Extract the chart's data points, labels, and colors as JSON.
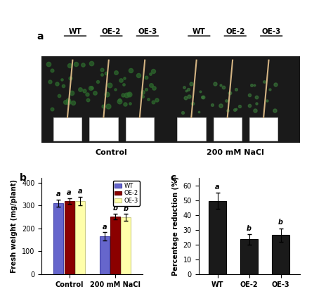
{
  "panel_b": {
    "groups": [
      "Control",
      "200 mM NaCl"
    ],
    "categories": [
      "WT",
      "OE-2",
      "OE-3"
    ],
    "values": [
      [
        310,
        320,
        320
      ],
      [
        165,
        252,
        248
      ]
    ],
    "errors": [
      [
        15,
        12,
        18
      ],
      [
        18,
        12,
        15
      ]
    ],
    "bar_colors": [
      "#6666cc",
      "#8b0000",
      "#ffffaa"
    ],
    "bar_edge_colors": [
      "#4444aa",
      "#660000",
      "#cccc88"
    ],
    "labels_control": [
      "a",
      "a",
      "a"
    ],
    "labels_nacl": [
      "a",
      "b",
      "b"
    ],
    "ylabel": "Fresh weight (mg/plant)",
    "ylim": [
      0,
      420
    ],
    "yticks": [
      0,
      100,
      200,
      300,
      400
    ],
    "legend_labels": [
      "WT",
      "OE-2",
      "OE-3"
    ],
    "legend_colors": [
      "#6666cc",
      "#8b0000",
      "#ffffaa"
    ],
    "legend_edge_colors": [
      "#4444aa",
      "#660000",
      "#cccc88"
    ]
  },
  "panel_c": {
    "categories": [
      "WT",
      "OE-2",
      "OE-3"
    ],
    "values": [
      49.5,
      23.5,
      26.5
    ],
    "errors": [
      5.5,
      3.5,
      4.5
    ],
    "bar_color": "#1a1a1a",
    "bar_edge_color": "#000000",
    "labels": [
      "a",
      "b",
      "b"
    ],
    "ylabel": "Percentage reduction (%)",
    "ylim": [
      0,
      65
    ],
    "yticks": [
      0,
      10,
      20,
      30,
      40,
      50,
      60
    ]
  },
  "panel_a_labels_left": [
    "WT",
    "OE-2",
    "OE-3"
  ],
  "panel_a_labels_right": [
    "WT",
    "OE-2",
    "OE-3"
  ],
  "panel_a_bottom_left": "Control",
  "panel_a_bottom_right": "200 mM NaCl",
  "panel_label_a": "a",
  "panel_label_b": "b",
  "panel_label_c": "c",
  "bg_color": "#ffffff"
}
